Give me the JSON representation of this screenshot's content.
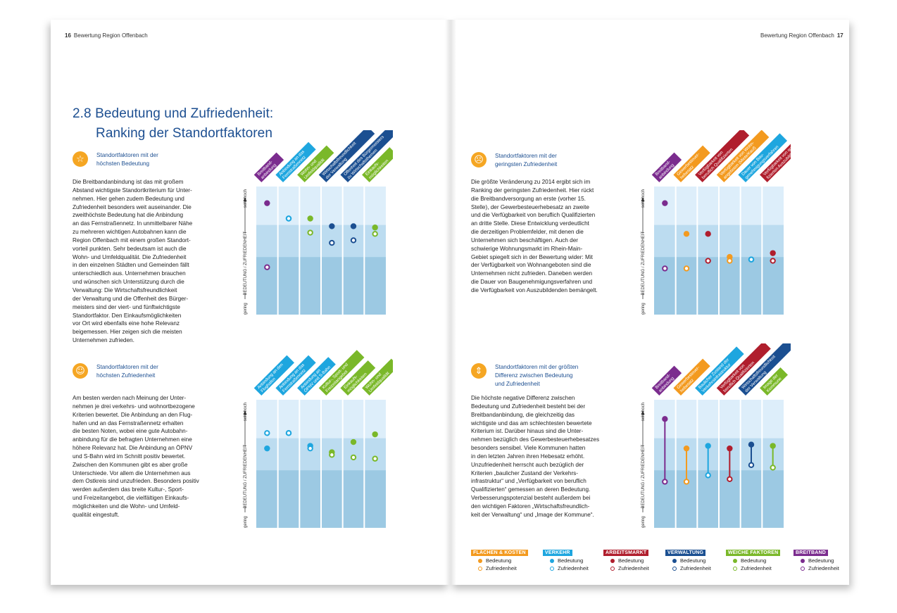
{
  "header": {
    "left_page_number": "16",
    "left_title": "Bewertung Region Offenbach",
    "right_title": "Bewertung Region Offenbach",
    "right_page_number": "17"
  },
  "title": {
    "line1": "2.8 Bedeutung und Zufriedenheit:",
    "line2": "Ranking der Standortfaktoren"
  },
  "sections": {
    "s1": {
      "icon": "star-icon",
      "label": "Standortfaktoren mit der\nhöchsten Bedeutung",
      "body": "Die Breitbandanbindung ist das mit großem\nAbstand wichtigste Standortkriterium für Unter-\nnehmen. Hier gehen zudem Bedeutung und\nZufriedenheit besonders weit auseinander. Die\nzweithöchste Bedeutung hat die Anbindung\nan das Fernstraßennetz. In unmittelbarer Nähe\nzu mehreren wichtigen Autobahnen kann die\nRegion Offenbach mit einem großen Standort-\nvorteil punkten. Sehr bedeutsam ist auch die\nWohn- und Umfeldqualität. Die Zufriedenheit\nin den einzelnen Städten und Gemeinden fällt\nunterschiedlich aus. Unternehmen brauchen\nund wünschen sich Unterstützung durch die\nVerwaltung: Die Wirtschaftsfreundlichkeit\nder Verwaltung und die Offenheit des Bürger-\nmeisters sind der viert- und fünftwichtigste\nStandortfaktor. Den Einkaufsmöglichkeiten\nvor Ort wird ebenfalls eine hohe Relevanz\nbeigemessen. Hier zeigen sich die meisten\nUnternehmen zufrieden."
    },
    "s2": {
      "icon": "smiley-happy-icon",
      "label": "Standortfaktoren mit der\nhöchsten Zufriedenheit",
      "body": "Am besten werden nach Meinung der Unter-\nnehmen je drei verkehrs- und wohnortbezogene\nKriterien bewertet. Die Anbindung an den Flug-\nhafen und an das Fernstraßennetz erhalten\ndie besten Noten, wobei eine gute Autobahn-\nanbindung für die befragten Unternehmen eine\nhöhere Relevanz hat. Die Anbindung an ÖPNV\nund S-Bahn wird im Schnitt positiv bewertet.\nZwischen den Kommunen gibt es aber große\nUnterschiede. Vor allem die Unternehmen aus\ndem Ostkreis sind unzufrieden. Besonders positiv\nwerden außerdem das breite Kultur-, Sport-\nund Freizeitangebot, die vielfältigen Einkaufs-\nmöglichkeiten und die Wohn- und Umfeld-\nqualität eingestuft."
    },
    "s3": {
      "icon": "smiley-sad-icon",
      "label": "Standortfaktoren mit der\ngeringsten Zufriedenheit",
      "body": "Die größte Veränderung zu 2014 ergibt sich im\nRanking der geringsten Zufriedenheit. Hier rückt\ndie Breitbandversorgung an erste (vorher 15.\nStelle), der Gewerbesteuerhebesatz an zweite\nund die Verfügbarkeit von beruflich Qualifizierten\nan dritte Stelle. Diese Entwicklung verdeutlicht\ndie derzeitigen Problemfelder, mit denen die\nUnternehmen sich beschäftigen. Auch der\nschwierige Wohnungsmarkt im Rhein-Main-\nGebiet spiegelt sich in der Bewertung wider: Mit\nder Verfügbarkeit von Wohnangeboten sind die\nUnternehmen nicht zufrieden. Daneben werden\ndie Dauer von Baugenehmigungsverfahren und\ndie Verfügbarkeit von Auszubildenden bemängelt."
    },
    "s4": {
      "icon": "difference-arrows-icon",
      "label": "Standortfaktoren mit der größten\nDifferenz zwischen Bedeutung\nund Zufriedenheit",
      "body": "Die höchste negative Differenz zwischen\nBedeutung und Zufriedenheit besteht bei der\nBreitbandanbindung, die gleichzeitig das\nwichtigste und das am schlechtesten bewertete\nKriterium ist. Darüber hinaus sind die Unter-\nnehmen bezüglich des Gewerbesteuerhebesatzes\nbesonders sensibel. Viele Kommunen hatten\nin den letzten Jahren ihren Hebesatz erhöht.\nUnzufriedenheit herrscht auch bezüglich der\nKriterien „baulicher Zustand der Verkehrs-\ninfrastruktur“ und „Verfügbarkeit von beruflich\nQualifizierten“ gemessen an deren Bedeutung.\nVerbesserungspotenzial besteht außerdem bei\nden wichtigen Faktoren „Wirtschaftsfreundlich-\nkeit der Verwaltung“ und „Image der Kommune“."
    }
  },
  "axis": {
    "high": "sehr hoch",
    "label": "BEDEUTUNG / ZUFRIEDENHEIT",
    "low": "gering"
  },
  "colors": {
    "flaechen": "#f39a1f",
    "verkehr": "#1ea6df",
    "arbeitsmarkt": "#b01e2d",
    "verwaltung": "#1b4f91",
    "weiche": "#7ab829",
    "breitband": "#7b2c8e",
    "band_light": "#ddeefa",
    "band_mid": "#bcdcf0",
    "band_dark": "#9cc9e3"
  },
  "chart_data": [
    {
      "type": "dot-plot",
      "id": "c1",
      "categories": [
        {
          "label": "Breitband-\nanbindung",
          "group": "breitband",
          "bedeutung": 0.87,
          "zufriedenheit": 0.37
        },
        {
          "label": "Anbindung an das\nFernstraßennetz",
          "group": "verkehr",
          "bedeutung": 0.75,
          "zufriedenheit": 0.75
        },
        {
          "label": "Wohn- und\nUmfeldqualität",
          "group": "weiche",
          "bedeutung": 0.75,
          "zufriedenheit": 0.64
        },
        {
          "label": "Wirtschaftsfreundlichkeit\nder Verwaltung",
          "group": "verwaltung",
          "bedeutung": 0.69,
          "zufriedenheit": 0.56
        },
        {
          "label": "Offenheit des Bürgermeisters\nzu Wirtschaftsthemen",
          "group": "verwaltung",
          "bedeutung": 0.69,
          "zufriedenheit": 0.58
        },
        {
          "label": "Einkaufs-\nmöglichkeiten",
          "group": "weiche",
          "bedeutung": 0.68,
          "zufriedenheit": 0.63
        }
      ]
    },
    {
      "type": "dot-plot",
      "id": "c2",
      "categories": [
        {
          "label": "Anbindung an den\nFlughafen",
          "group": "verkehr",
          "bedeutung": 0.62,
          "zufriedenheit": 0.74
        },
        {
          "label": "Anbindung an das\nFernstraßennetz",
          "group": "verkehr",
          "bedeutung": 0.74,
          "zufriedenheit": 0.74
        },
        {
          "label": "Anbindung an\nÖPNV und S-Bahn",
          "group": "verkehr",
          "bedeutung": 0.64,
          "zufriedenheit": 0.62
        },
        {
          "label": "Kultur-, Sport- und\nFreizeitangebot",
          "group": "weiche",
          "bedeutung": 0.59,
          "zufriedenheit": 0.57
        },
        {
          "label": "Einkaufs-\nmöglichkeiten",
          "group": "weiche",
          "bedeutung": 0.67,
          "zufriedenheit": 0.55
        },
        {
          "label": "Wohn- und\nUmfeldqualität",
          "group": "weiche",
          "bedeutung": 0.73,
          "zufriedenheit": 0.54
        }
      ]
    },
    {
      "type": "dot-plot",
      "id": "c3",
      "categories": [
        {
          "label": "Breitband-\nanbindung",
          "group": "breitband",
          "bedeutung": 0.87,
          "zufriedenheit": 0.36
        },
        {
          "label": "Gewerbesteuer-\nhebesatz",
          "group": "flaechen",
          "bedeutung": 0.63,
          "zufriedenheit": 0.36
        },
        {
          "label": "Verfügbarkeit von\nberuflich Qualifizierten",
          "group": "arbeitsmarkt",
          "bedeutung": 0.63,
          "zufriedenheit": 0.42
        },
        {
          "label": "Verfügbarkeit von Wohn-\nangeboten (Miete/Kauf)",
          "group": "flaechen",
          "bedeutung": 0.45,
          "zufriedenheit": 0.42
        },
        {
          "label": "Dauer von Bau-\ngenehmigungsverfahren",
          "group": "verkehr",
          "bedeutung": 0.43,
          "zufriedenheit": 0.43
        },
        {
          "label": "Verfügbarkeit von quali-\nfizierten Auszubildenden",
          "group": "arbeitsmarkt",
          "bedeutung": 0.48,
          "zufriedenheit": 0.42
        }
      ]
    },
    {
      "type": "dumbbell",
      "id": "c4",
      "categories": [
        {
          "label": "Breitband-\nanbindung",
          "group": "breitband",
          "bedeutung": 0.85,
          "zufriedenheit": 0.36
        },
        {
          "label": "Gewerbesteuer-\nhebesatz",
          "group": "flaechen",
          "bedeutung": 0.62,
          "zufriedenheit": 0.36
        },
        {
          "label": "Baulicher Zustand der\nVerkehrsinfrastruktur",
          "group": "verkehr",
          "bedeutung": 0.64,
          "zufriedenheit": 0.41
        },
        {
          "label": "Verfügbarkeit von\nberuflich Qualifizierten",
          "group": "arbeitsmarkt",
          "bedeutung": 0.62,
          "zufriedenheit": 0.38
        },
        {
          "label": "Wirtschaftsfreundlichkeit\nder Verwaltung",
          "group": "verwaltung",
          "bedeutung": 0.65,
          "zufriedenheit": 0.49
        },
        {
          "label": "Image der\nKommune",
          "group": "weiche",
          "bedeutung": 0.64,
          "zufriedenheit": 0.47
        }
      ]
    }
  ],
  "legend": {
    "items": [
      {
        "title": "FLÄCHEN & KOSTEN",
        "group": "flaechen"
      },
      {
        "title": "VERKEHR",
        "group": "verkehr"
      },
      {
        "title": "ARBEITSMARKT",
        "group": "arbeitsmarkt"
      },
      {
        "title": "VERWALTUNG",
        "group": "verwaltung"
      },
      {
        "title": "WEICHE FAKTOREN",
        "group": "weiche"
      },
      {
        "title": "BREITBAND",
        "group": "breitband"
      }
    ],
    "bedeutung": "Bedeutung",
    "zufriedenheit": "Zufriedenheit"
  }
}
